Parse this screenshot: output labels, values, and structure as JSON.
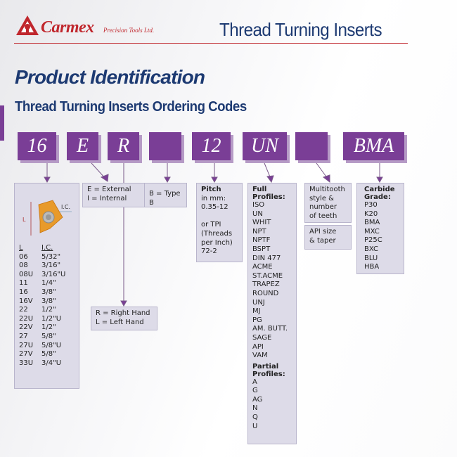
{
  "header": {
    "brand": "Carmex",
    "brand_sub": "Precision Tools Ltd.",
    "title": "Thread Turning Inserts"
  },
  "page": {
    "title": "Product Identification",
    "subtitle": "Thread Turning Inserts Ordering Codes"
  },
  "colors": {
    "accent_purple": "#7a3e96",
    "navy": "#1d3a72",
    "brand_red": "#c0272d",
    "box_fill": "#dddbe8"
  },
  "codes": [
    "16",
    "E",
    "R",
    "",
    "12",
    "UN",
    "",
    "BMA"
  ],
  "size": {
    "diagram_labels": {
      "l": "L",
      "ic": "I.C."
    },
    "header": [
      "L",
      "I.C."
    ],
    "rows": [
      [
        "06",
        "5/32\""
      ],
      [
        "08",
        "3/16\""
      ],
      [
        "08U",
        "3/16\"U"
      ],
      [
        "11",
        "1/4\""
      ],
      [
        "16",
        "3/8\""
      ],
      [
        "16V",
        "3/8\""
      ],
      [
        "22",
        "1/2\""
      ],
      [
        "22U",
        "1/2\"U"
      ],
      [
        "22V",
        "1/2\""
      ],
      [
        "27",
        "5/8\""
      ],
      [
        "27U",
        "5/8\"U"
      ],
      [
        "27V",
        "5/8\""
      ],
      [
        "33U",
        "3/4\"U"
      ]
    ]
  },
  "type": {
    "line1": "E = External",
    "line2": "I = Internal"
  },
  "hand": {
    "line1": "R = Right Hand",
    "line2": "L = Left Hand"
  },
  "typeb": {
    "text": "B = Type B"
  },
  "pitch": {
    "heading": "Pitch",
    "lines": [
      "in mm:",
      "0.35-12",
      "",
      "or TPI",
      "(Threads",
      "per Inch)",
      "72-2"
    ]
  },
  "profiles": {
    "full_heading": [
      "Full",
      "Profiles:"
    ],
    "full": [
      "ISO",
      "UN",
      "WHIT",
      "NPT",
      "NPTF",
      "BSPT",
      "DIN 477",
      "ACME",
      "ST.ACME",
      "TRAPEZ",
      "ROUND",
      "UNJ",
      "MJ",
      "PG",
      "AM. BUTT.",
      "SAGE",
      "API",
      "VAM"
    ],
    "partial_heading": [
      "Partial",
      "Profiles:"
    ],
    "partial": [
      "A",
      "G",
      "AG",
      "N",
      "Q",
      "U"
    ]
  },
  "multitooth": {
    "lines": [
      "Multitooth",
      "style &",
      "number",
      "of teeth"
    ]
  },
  "api": {
    "lines": [
      "API size",
      "& taper"
    ]
  },
  "grade": {
    "heading": [
      "Carbide",
      "Grade:"
    ],
    "items": [
      "P30",
      "K20",
      "BMA",
      "MXC",
      "P25C",
      "BXC",
      "BLU",
      "HBA"
    ]
  }
}
